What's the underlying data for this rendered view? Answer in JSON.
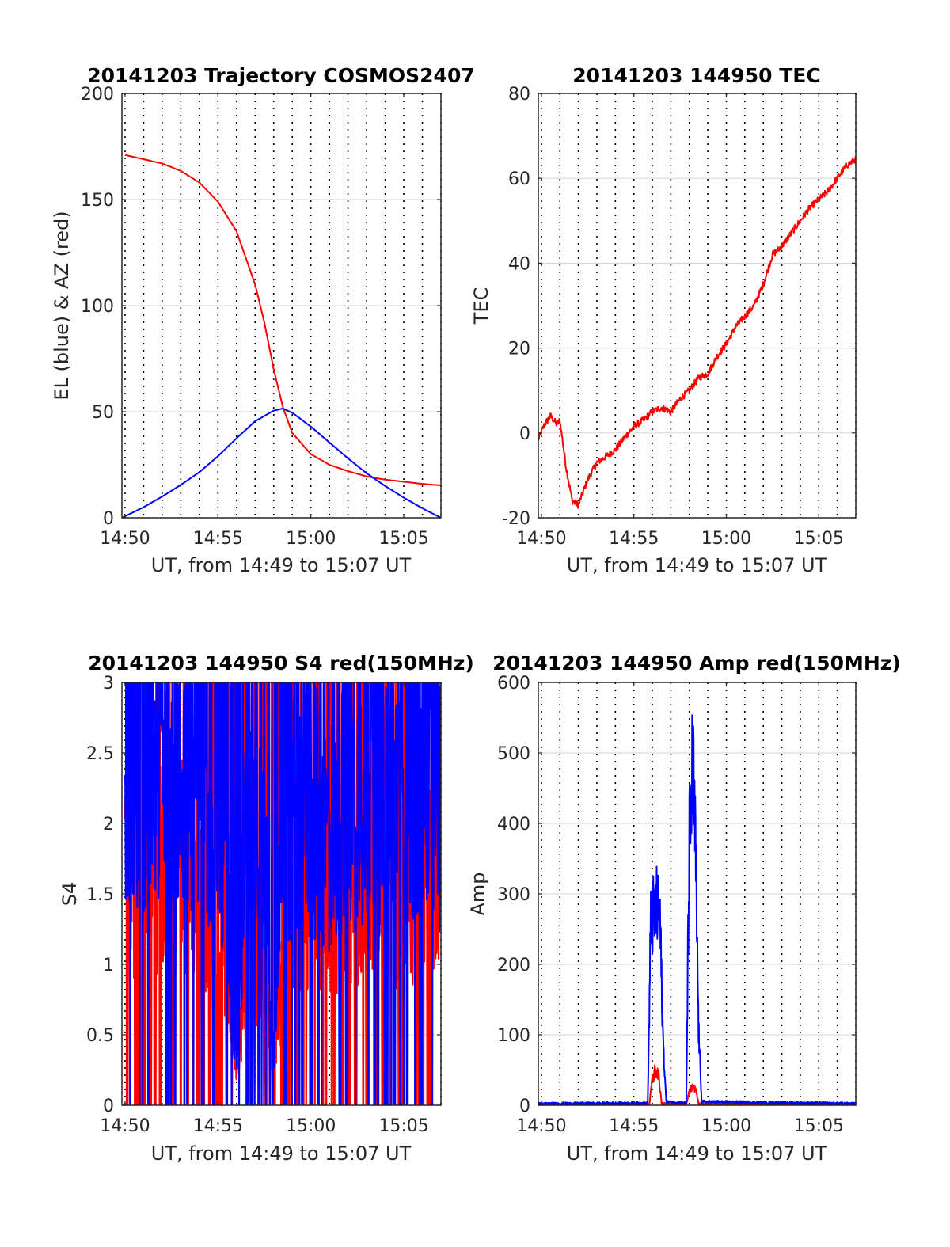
{
  "colors": {
    "red": "#ff0000",
    "blue": "#0000ff",
    "grid": "#dcdcdc",
    "axis": "#262626",
    "background": "#ffffff"
  },
  "chart_data": [
    {
      "type": "line",
      "title": "20141203 Trajectory COSMOS2407",
      "xlabel": "UT, from 14:49 to 15:07 UT",
      "ylabel": "EL (blue) & AZ (red)",
      "xlim": [
        "14:49:50",
        "15:07:00"
      ],
      "ylim": [
        0,
        200
      ],
      "xticks": [
        "14:50",
        "14:55",
        "15:00",
        "15:05"
      ],
      "yticks": [
        "0",
        "50",
        "100",
        "150",
        "200"
      ],
      "grid": "y solid, x dotted each minute",
      "series": [
        {
          "color": "#ff0000",
          "x": [
            "14:50",
            "14:51",
            "14:52",
            "14:53",
            "14:54",
            "14:55",
            "14:56",
            "14:57",
            "14:57:30",
            "14:58",
            "14:58:30",
            "14:59",
            "15:00",
            "15:01",
            "15:02",
            "15:03",
            "15:04",
            "15:05",
            "15:06",
            "15:07"
          ],
          "y": [
            171,
            169,
            167,
            163.5,
            158,
            149,
            135,
            110,
            92,
            70,
            52,
            40,
            30,
            25,
            22,
            19.5,
            18,
            17,
            16,
            15.3
          ]
        },
        {
          "color": "#0000ff",
          "x": [
            "14:49:50",
            "14:51",
            "14:52",
            "14:53",
            "14:54",
            "14:55",
            "14:56",
            "14:57",
            "14:58",
            "14:58:30",
            "14:59",
            "15:00",
            "15:01",
            "15:02",
            "15:03",
            "15:04",
            "15:05",
            "15:06",
            "15:07"
          ],
          "y": [
            0,
            5,
            10,
            15.5,
            21.5,
            29,
            37.5,
            45.5,
            50.5,
            51.5,
            49.5,
            43,
            35.5,
            28,
            21,
            15,
            9.5,
            4.5,
            0
          ]
        }
      ]
    },
    {
      "type": "line",
      "title": "20141203 144950 TEC",
      "xlabel": "UT, from 14:49 to 15:07 UT",
      "ylabel": "TEC",
      "xlim": [
        "14:49:50",
        "15:07:00"
      ],
      "ylim": [
        -20,
        80
      ],
      "xticks": [
        "14:50",
        "14:55",
        "15:00",
        "15:05"
      ],
      "yticks": [
        "-20",
        "0",
        "20",
        "40",
        "60",
        "80"
      ],
      "grid": "y solid, x dotted each minute",
      "series": [
        {
          "color": "#ff0000",
          "x": [
            "14:49:50",
            "14:50:10",
            "14:50:30",
            "14:50:50",
            "14:51:00",
            "14:51:20",
            "14:51:40",
            "14:52:00",
            "14:52:30",
            "14:53:00",
            "14:53:30",
            "14:54:00",
            "14:54:30",
            "14:55:00",
            "14:55:30",
            "14:56:00",
            "14:56:30",
            "14:57:00",
            "14:57:30",
            "14:58:00",
            "14:58:30",
            "14:59:00",
            "14:59:30",
            "15:00:00",
            "15:00:30",
            "15:01:00",
            "15:01:30",
            "15:02:00",
            "15:02:30",
            "15:03:00",
            "15:03:30",
            "15:04:00",
            "15:04:30",
            "15:05:00",
            "15:05:30",
            "15:06:00",
            "15:06:30",
            "15:07:00"
          ],
          "y": [
            -1.5,
            2,
            4,
            2,
            3,
            -8,
            -16,
            -17,
            -11,
            -7,
            -5.5,
            -4,
            -1,
            1.5,
            3,
            5,
            6,
            5,
            8,
            10,
            13,
            14,
            18,
            21,
            25,
            27.5,
            30,
            35,
            42,
            44,
            47,
            50,
            53,
            55,
            57,
            60,
            63,
            64.5
          ]
        }
      ]
    },
    {
      "type": "line",
      "title": "20141203 144950 S4 red(150MHz)",
      "xlabel": "UT, from 14:49 to 15:07 UT",
      "ylabel": "S4",
      "xlim": [
        "14:49:50",
        "15:07:00"
      ],
      "ylim": [
        0,
        3
      ],
      "xticks": [
        "14:50",
        "14:55",
        "15:00",
        "15:05"
      ],
      "yticks": [
        "0",
        "0.5",
        "1",
        "1.5",
        "2",
        "2.5",
        "3"
      ],
      "grid": "y solid, x dotted each minute",
      "series": [
        {
          "color": "#ff0000",
          "x": [
            "14:50",
            "14:51",
            "14:52",
            "14:53",
            "14:54",
            "14:55",
            "14:55:30",
            "14:56",
            "14:56:30",
            "14:57",
            "14:57:30",
            "14:58",
            "14:58:30",
            "14:59",
            "15:00",
            "15:01",
            "15:02",
            "15:03",
            "15:04",
            "15:05",
            "15:06",
            "15:07"
          ],
          "y": [
            1.6,
            1.5,
            1.7,
            1.8,
            1.4,
            1.3,
            1.0,
            0.3,
            0.8,
            0.7,
            0.9,
            0.3,
            0.9,
            1.3,
            1.5,
            1.4,
            1.5,
            1.6,
            1.5,
            1.5,
            1.6,
            1.7
          ]
        },
        {
          "color": "#0000ff",
          "x": [
            "14:50",
            "14:51",
            "14:52",
            "14:53",
            "14:54",
            "14:55",
            "14:55:30",
            "14:56",
            "14:56:30",
            "14:57",
            "14:57:30",
            "14:58",
            "14:58:30",
            "14:59",
            "15:00",
            "15:01",
            "15:02",
            "15:03",
            "15:04",
            "15:05",
            "15:06",
            "15:07"
          ],
          "y": [
            2.6,
            2.4,
            2.5,
            2.3,
            2.6,
            2.0,
            1.5,
            0.2,
            2.1,
            1.8,
            1.9,
            0.3,
            2.3,
            2.0,
            2.1,
            1.9,
            2.2,
            2.3,
            2.1,
            2.3,
            2.4,
            2.2
          ]
        }
      ]
    },
    {
      "type": "line",
      "title": "20141203 144950 Amp red(150MHz)",
      "xlabel": "UT, from 14:49 to 15:07 UT",
      "ylabel": "Amp",
      "xlim": [
        "14:49:50",
        "15:07:00"
      ],
      "ylim": [
        0,
        600
      ],
      "xticks": [
        "14:50",
        "14:55",
        "15:00",
        "15:05"
      ],
      "yticks": [
        "0",
        "100",
        "200",
        "300",
        "400",
        "500",
        "600"
      ],
      "grid": "y solid, x dotted each minute",
      "series": [
        {
          "color": "#ff0000",
          "x": [
            "14:49:50",
            "14:55:50",
            "14:56:00",
            "14:56:10",
            "14:56:20",
            "14:56:30",
            "14:57:50",
            "14:58:00",
            "14:58:10",
            "14:58:20",
            "14:58:30",
            "15:07:00"
          ],
          "y": [
            0,
            0,
            40,
            55,
            50,
            2,
            2,
            20,
            30,
            25,
            2,
            0
          ]
        },
        {
          "color": "#0000ff",
          "x": [
            "14:49:50",
            "14:55:45",
            "14:55:55",
            "14:56:05",
            "14:56:15",
            "14:56:25",
            "14:56:35",
            "14:56:45",
            "14:57:50",
            "14:58:00",
            "14:58:05",
            "14:58:10",
            "14:58:15",
            "14:58:20",
            "14:58:30",
            "14:58:40",
            "15:07:00"
          ],
          "y": [
            2,
            3,
            285,
            300,
            310,
            290,
            100,
            5,
            3,
            420,
            440,
            530,
            480,
            400,
            120,
            5,
            2
          ]
        }
      ]
    }
  ]
}
